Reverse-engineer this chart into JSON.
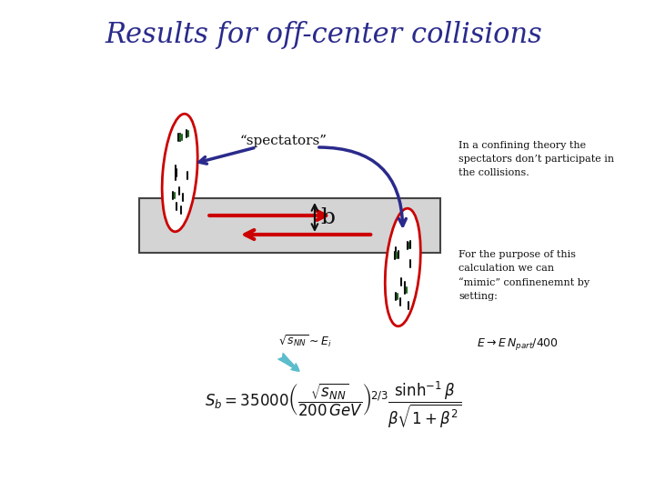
{
  "title": "Results for off-center collisions",
  "title_color": "#2a2a8c",
  "title_fontsize": 22,
  "bg_color": "#ffffff",
  "spectators_label": "“spectators”",
  "right_text1": "In a confining theory the\nspectators don’t participate in\nthe collisions.",
  "right_text2": "For the purpose of this\ncalculation we can\n“mimic” confinenemnt by\nsetting:",
  "right_formula": "$E \\rightarrow E\\,N_{part}/400$",
  "sqrt_label": "$\\sqrt{s_{NN}} \\sim E_i$",
  "main_formula": "$S_b = 35000\\left(\\dfrac{\\sqrt{s_{NN}}}{200\\,GeV}\\right)^{\\!2/3}\\dfrac{\\sinh^{-1}\\beta}{\\beta\\sqrt{1+\\beta^2}}$",
  "ellipse_color": "#cc0000",
  "arrow_color": "#cc0000",
  "blue_color": "#2a2a8c",
  "teal_color": "#5bbccc",
  "rect_color": "#d4d4d4",
  "rect_edge": "#444444",
  "dot_color": "#226622",
  "black_color": "#111111"
}
